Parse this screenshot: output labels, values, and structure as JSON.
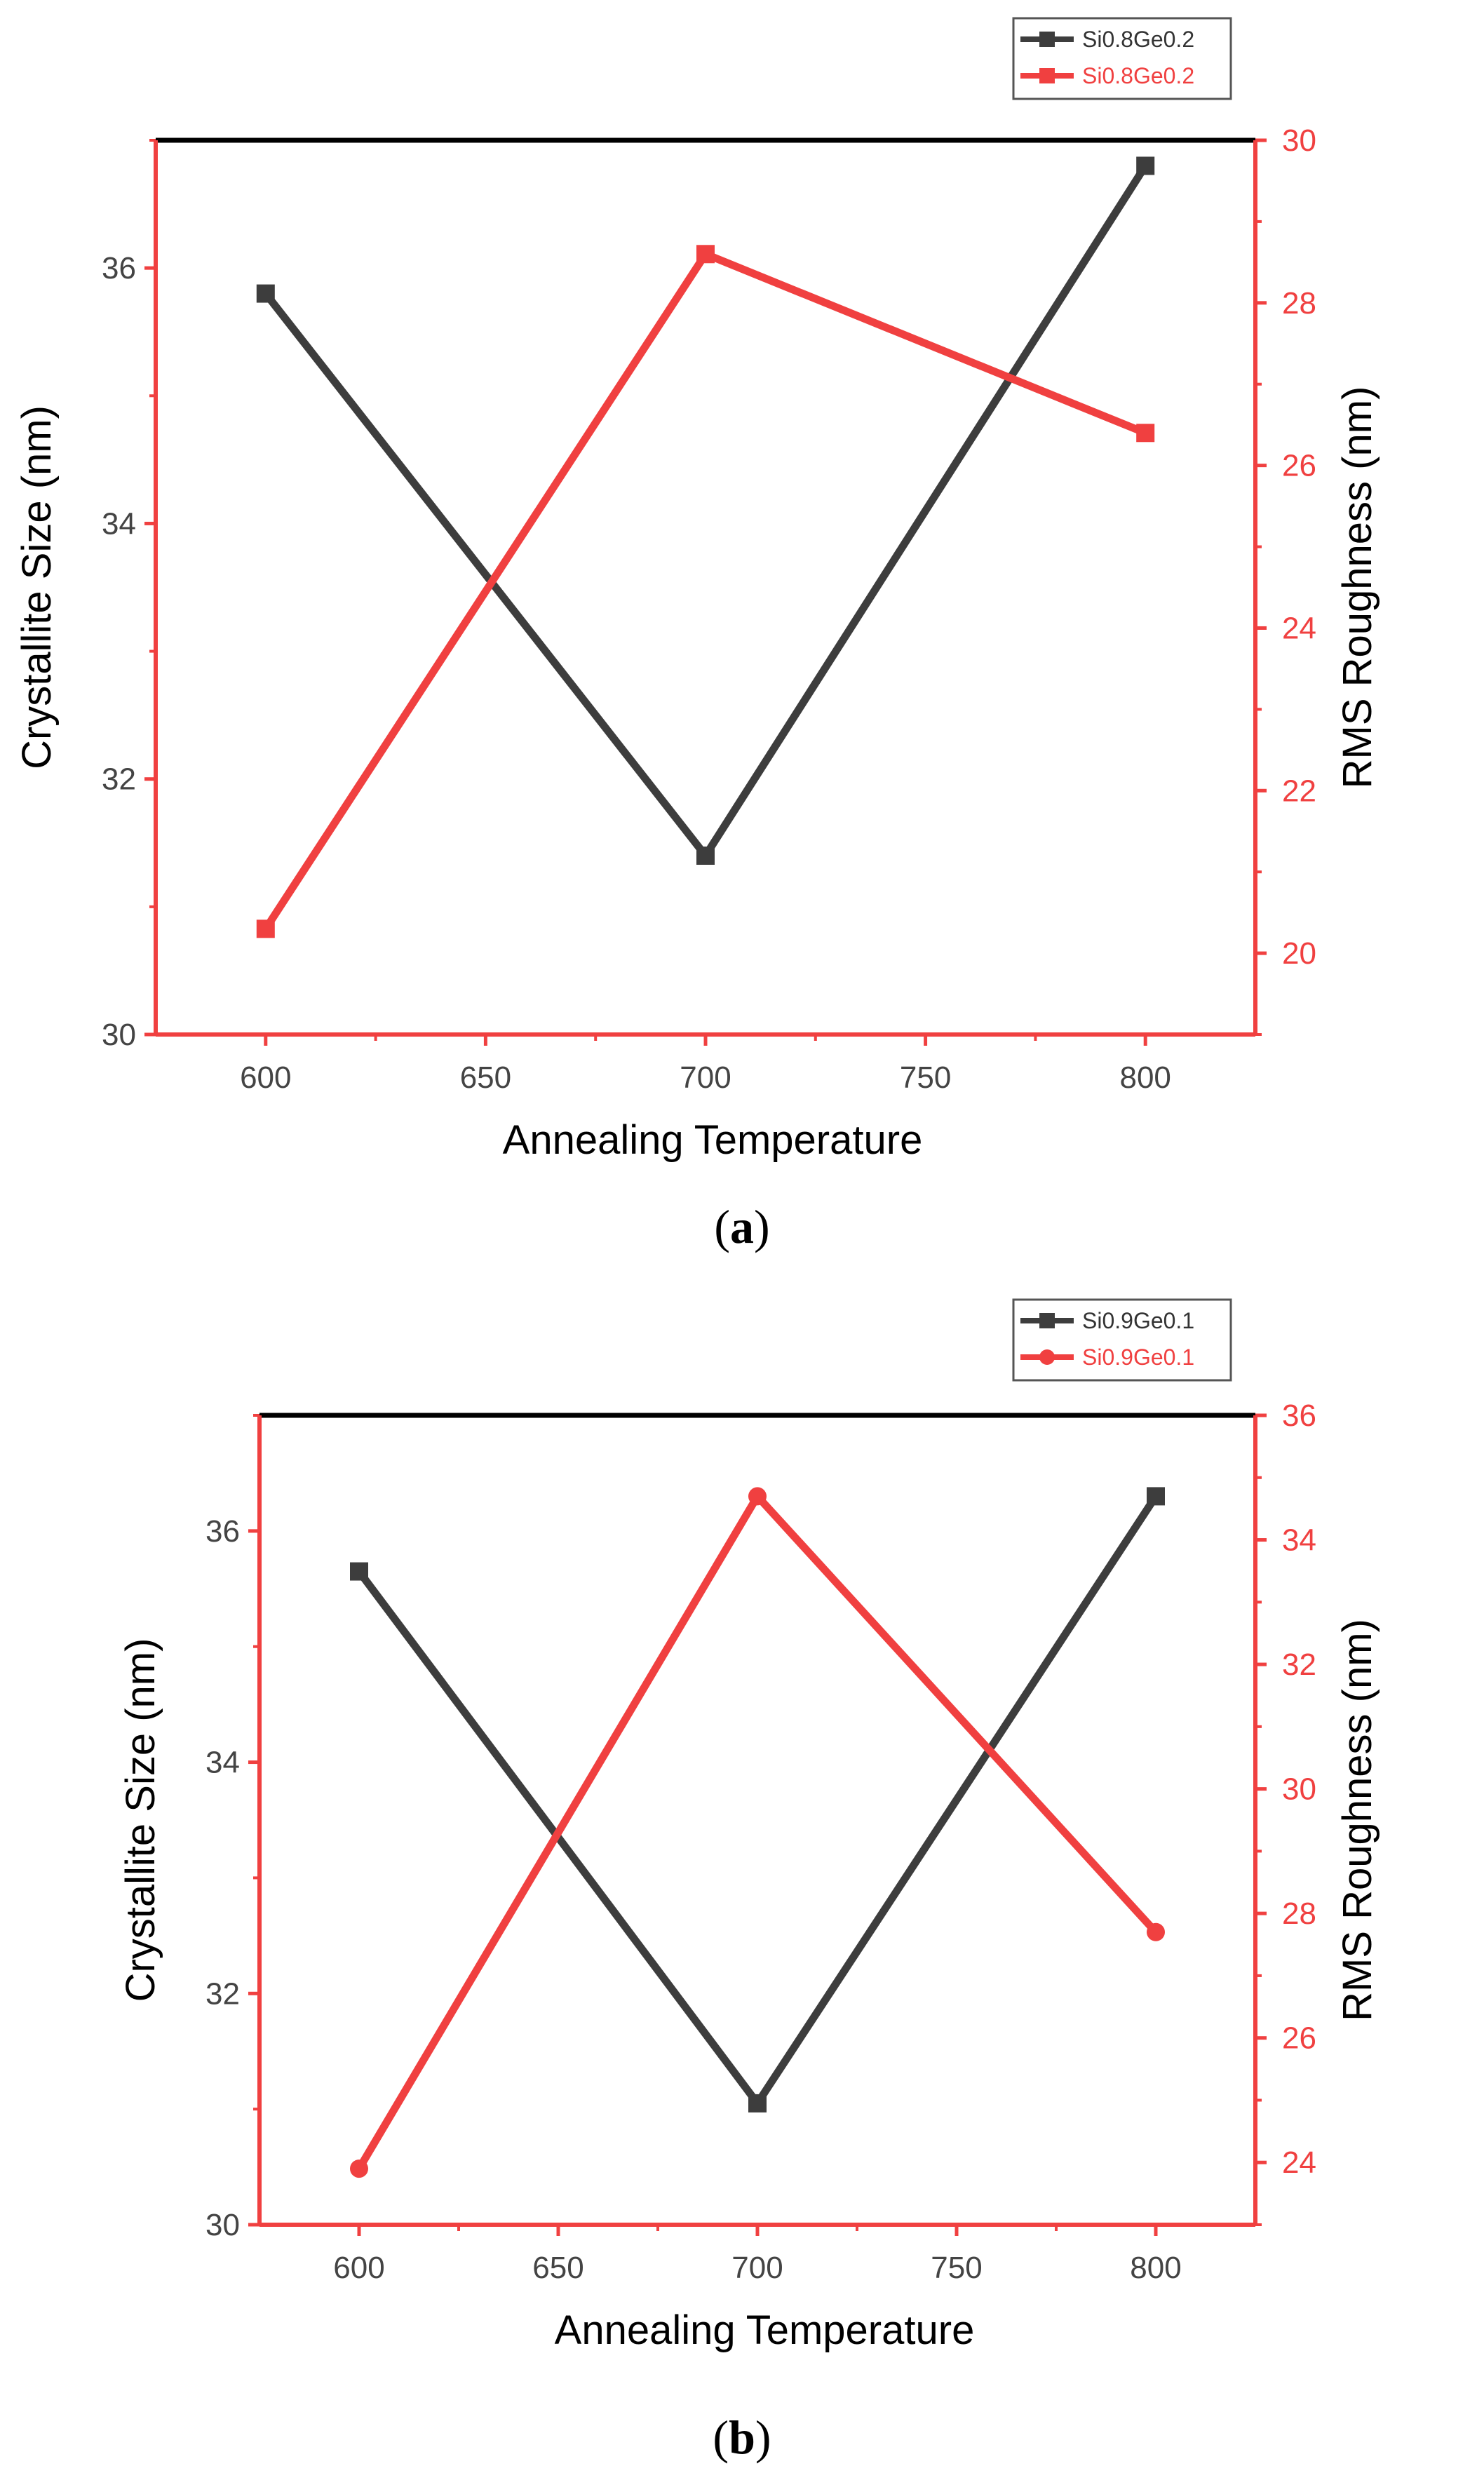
{
  "chart_data": [
    {
      "type": "line",
      "panel": "a",
      "caption_open": "(",
      "caption_letter": "a",
      "caption_close": ")",
      "x": [
        600,
        700,
        800
      ],
      "xlim": [
        575,
        825
      ],
      "xticks": [
        600,
        650,
        700,
        750,
        800
      ],
      "xlabel": "Annealing Temperature",
      "ylabel": "Crystallite Size (nm)",
      "ylim": [
        30,
        37
      ],
      "yticks": [
        30,
        32,
        34,
        36
      ],
      "y2label": "RMS Roughness (nm)",
      "y2lim": [
        19,
        30
      ],
      "y2ticks": [
        20,
        22,
        24,
        26,
        28,
        30
      ],
      "legend_position": "top-right",
      "series": [
        {
          "name": "Si0.8Ge0.2",
          "axis": "left",
          "values": [
            35.8,
            31.4,
            36.8
          ],
          "color": "#3d3d3d",
          "marker": "square"
        },
        {
          "name": "Si0.8Ge0.2",
          "axis": "right",
          "values": [
            20.3,
            28.6,
            26.4
          ],
          "color": "#f04040",
          "marker": "square"
        }
      ]
    },
    {
      "type": "line",
      "panel": "b",
      "caption_open": "(",
      "caption_letter": "b",
      "caption_close": ")",
      "x": [
        600,
        700,
        800
      ],
      "xlim": [
        575,
        825
      ],
      "xticks": [
        600,
        650,
        700,
        750,
        800
      ],
      "xlabel": "Annealing Temperature",
      "ylabel": "Crystallite Size (nm)",
      "ylim": [
        30,
        37
      ],
      "yticks": [
        30,
        32,
        34,
        36
      ],
      "y2label": "RMS Roughness (nm)",
      "y2lim": [
        23,
        36
      ],
      "y2ticks": [
        24,
        26,
        28,
        30,
        32,
        34,
        36
      ],
      "legend_position": "top-right",
      "series": [
        {
          "name": "Si0.9Ge0.1",
          "axis": "left",
          "values": [
            35.65,
            31.05,
            36.3
          ],
          "color": "#3d3d3d",
          "marker": "square"
        },
        {
          "name": "Si0.9Ge0.1",
          "axis": "right",
          "values": [
            23.9,
            34.7,
            27.7
          ],
          "color": "#f04040",
          "marker": "circle"
        }
      ]
    }
  ]
}
